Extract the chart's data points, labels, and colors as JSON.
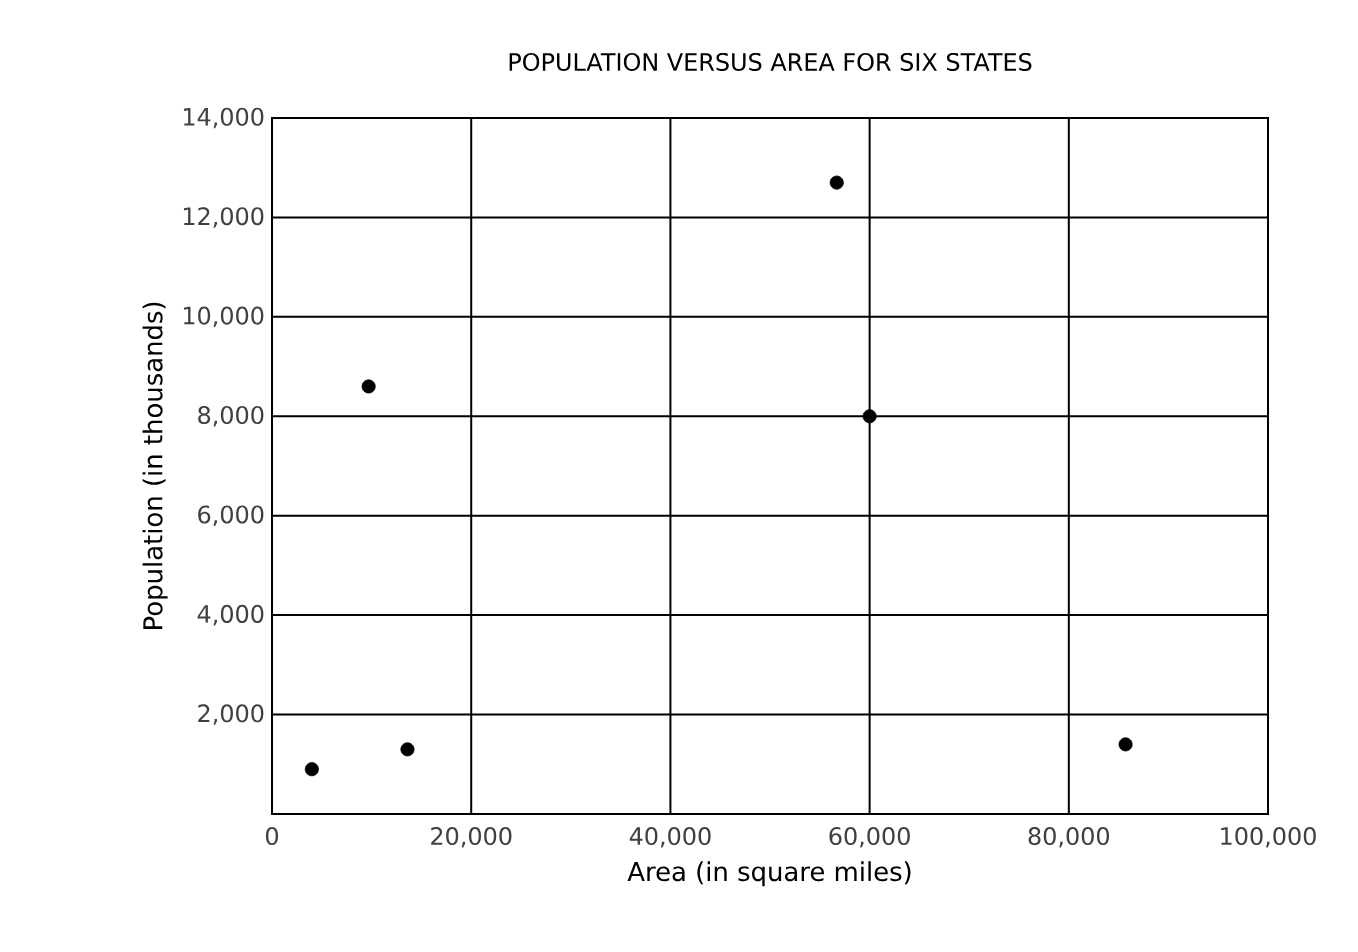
{
  "chart_data": {
    "type": "scatter",
    "title": "POPULATION VERSUS AREA FOR SIX STATES",
    "xlabel": "Area (in square miles)",
    "ylabel": "Population (in thousands)",
    "x": [
      4000,
      13600,
      9700,
      56700,
      60000,
      85700
    ],
    "values": [
      900,
      1300,
      8600,
      12700,
      8000,
      1400
    ],
    "color": "#000000",
    "grid": true,
    "xlim": [
      0,
      100000
    ],
    "xticks": [
      0,
      {
        "value": 20000,
        "label": "20,000"
      },
      {
        "value": 40000,
        "label": "40,000"
      },
      {
        "value": 60000,
        "label": "60,000"
      },
      {
        "value": 80000,
        "label": "80,000"
      },
      {
        "value": 100000,
        "label": "100,000"
      }
    ],
    "ylim": [
      0,
      14000
    ],
    "yticks": [
      {
        "value": 2000,
        "label": "2,000"
      },
      {
        "value": 4000,
        "label": "4,000"
      },
      {
        "value": 6000,
        "label": "6,000"
      },
      {
        "value": 8000,
        "label": "8,000"
      },
      {
        "value": 10000,
        "label": "10,000"
      },
      {
        "value": 12000,
        "label": "12,000"
      },
      {
        "value": 14000,
        "label": "14,000"
      }
    ]
  }
}
